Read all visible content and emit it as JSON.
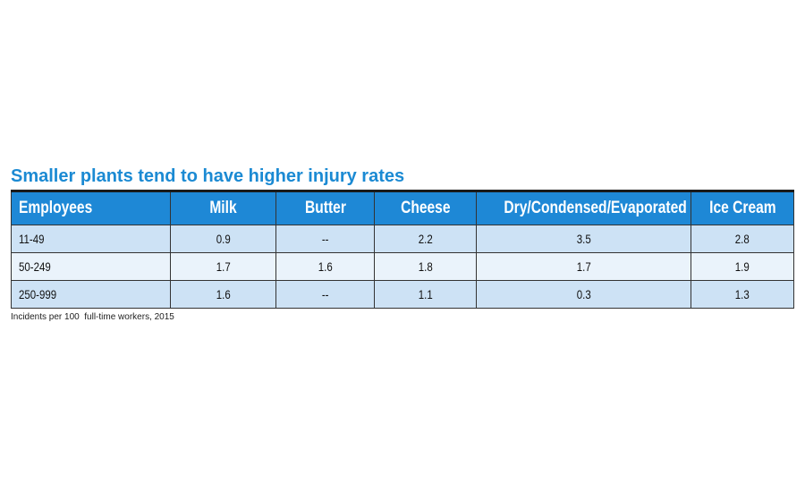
{
  "title": "Smaller plants tend to have higher injury rates",
  "table": {
    "columns": [
      "Employees",
      "Milk",
      "Butter",
      "Cheese",
      "Dry/Condensed/Evaporated",
      "Ice Cream"
    ],
    "rows": [
      [
        "11-49",
        0.9,
        "--",
        2.2,
        3.5,
        2.8
      ],
      [
        "50-249",
        1.7,
        1.6,
        1.8,
        1.7,
        1.9
      ],
      [
        "250-999",
        1.6,
        "--",
        1.1,
        0.3,
        1.3
      ]
    ]
  },
  "note": "Incidents per 100  full-time workers, 2015"
}
